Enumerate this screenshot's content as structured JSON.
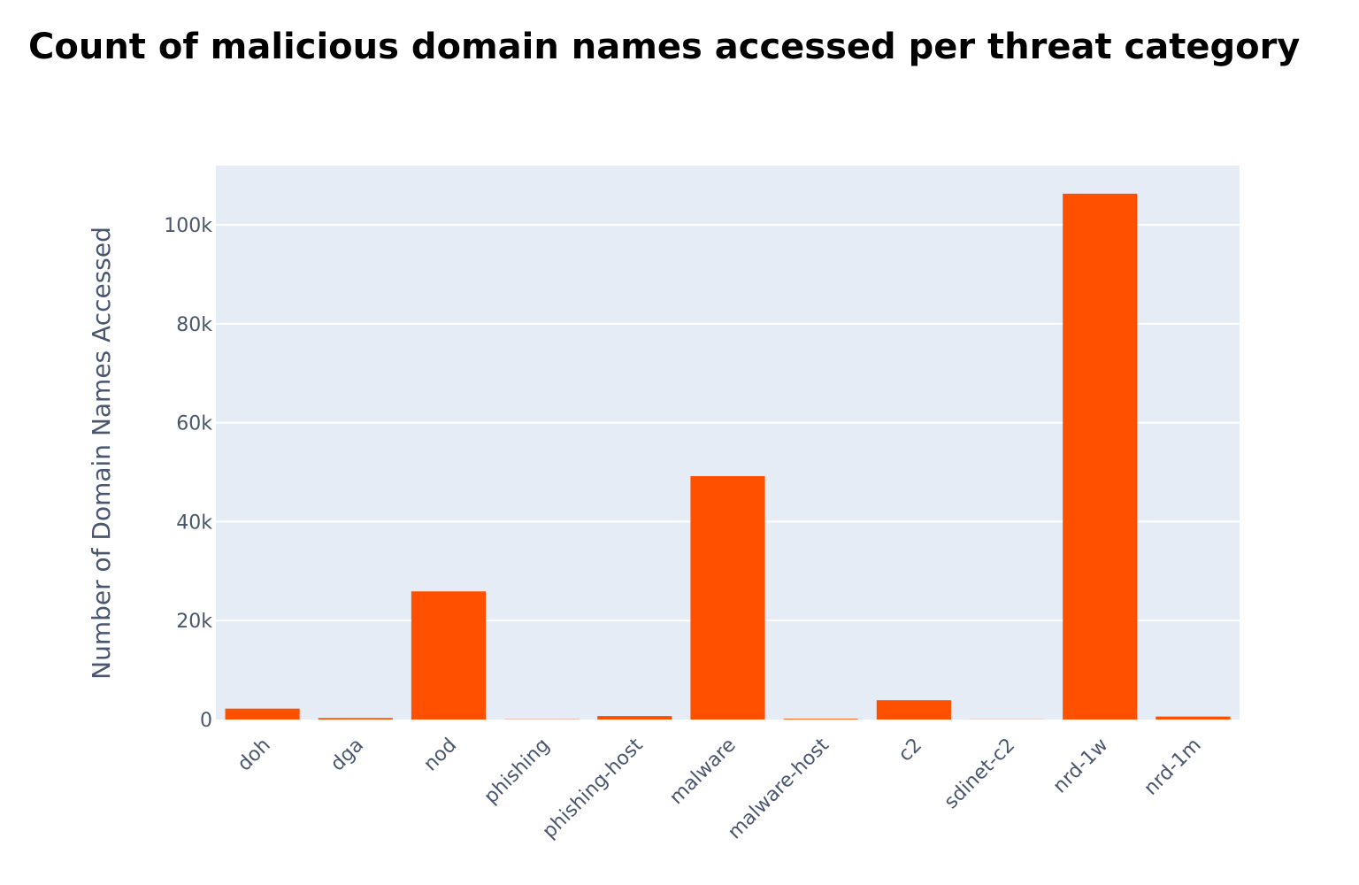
{
  "chart_data": {
    "type": "bar",
    "title": "Count of malicious domain names accessed per threat category",
    "xlabel": "",
    "ylabel": "Number of Domain Names Accessed",
    "categories": [
      "doh",
      "dga",
      "nod",
      "phishing",
      "phishing-host",
      "malware",
      "malware-host",
      "c2",
      "sdinet-c2",
      "nrd-1w",
      "nrd-1m"
    ],
    "values": [
      2200,
      300,
      25900,
      50,
      700,
      49200,
      150,
      3900,
      30,
      106300,
      600
    ],
    "ylim": [
      0,
      112000
    ],
    "y_ticks": [
      0,
      20000,
      40000,
      60000,
      80000,
      100000
    ],
    "y_tick_labels": [
      "0",
      "20k",
      "40k",
      "60k",
      "80k",
      "100k"
    ],
    "bar_color": "#ff5000",
    "plot_background": "#e5ecf6",
    "grid": true,
    "legend": false
  }
}
